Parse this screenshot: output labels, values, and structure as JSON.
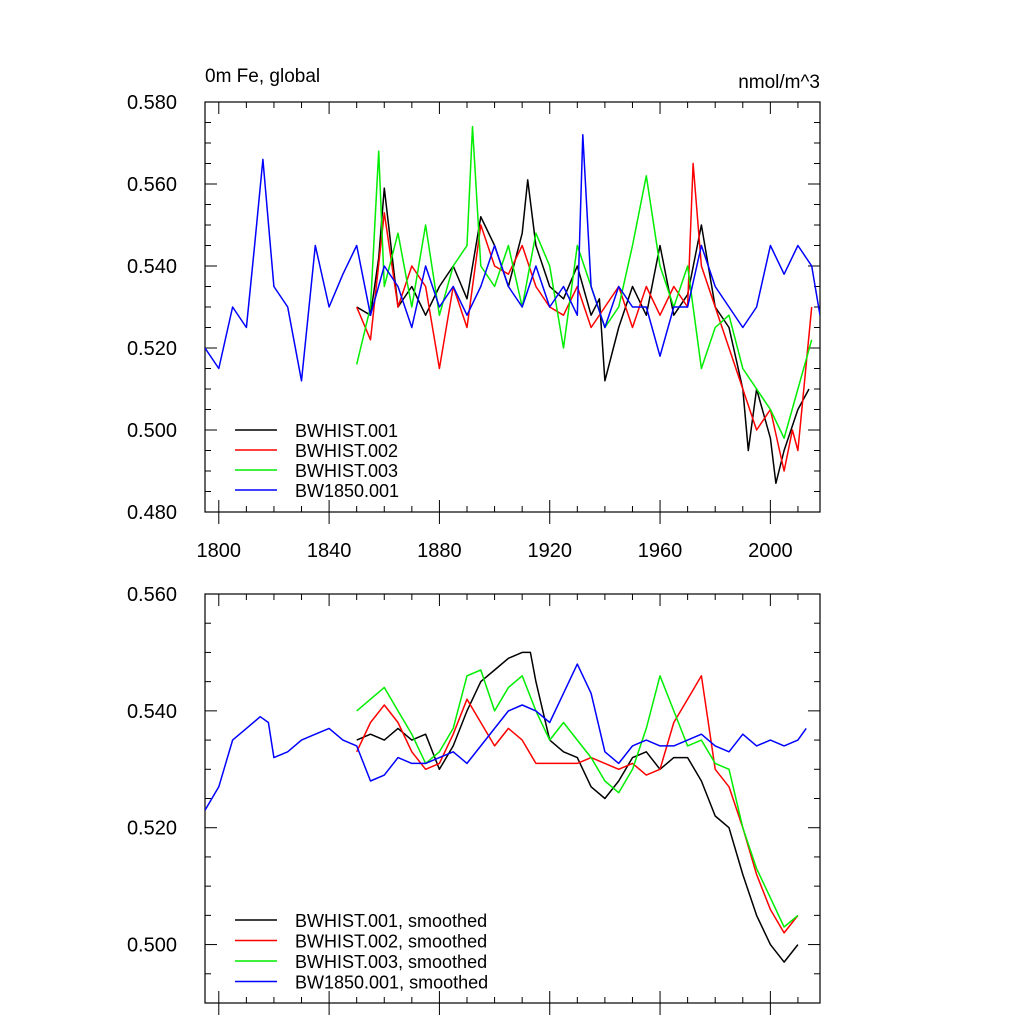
{
  "chart_data": [
    {
      "type": "line",
      "title_left": "0m Fe, global",
      "title_right": "nmol/m^3",
      "xlim": [
        1795,
        2018
      ],
      "ylim": [
        0.48,
        0.58
      ],
      "xticks": [
        1800,
        1840,
        1880,
        1920,
        1960,
        2000
      ],
      "xtick_labels": [
        "1800",
        "1840",
        "1880",
        "1920",
        "1960",
        "2000"
      ],
      "yticks": [
        0.48,
        0.5,
        0.52,
        0.54,
        0.56,
        0.58
      ],
      "ytick_labels": [
        "0.480",
        "0.500",
        "0.520",
        "0.540",
        "0.560",
        "0.580"
      ],
      "legend_position": "bottom-left",
      "grid": false,
      "series": [
        {
          "name": "BWHIST.001",
          "color": "#000000",
          "x": [
            1850,
            1855,
            1858,
            1860,
            1865,
            1870,
            1875,
            1880,
            1885,
            1890,
            1895,
            1900,
            1905,
            1910,
            1912,
            1915,
            1920,
            1925,
            1930,
            1935,
            1938,
            1940,
            1945,
            1950,
            1955,
            1960,
            1965,
            1970,
            1975,
            1980,
            1985,
            1990,
            1992,
            1995,
            2000,
            2002,
            2005,
            2010,
            2014
          ],
          "y": [
            0.53,
            0.528,
            0.542,
            0.559,
            0.53,
            0.535,
            0.528,
            0.535,
            0.54,
            0.532,
            0.552,
            0.545,
            0.535,
            0.548,
            0.561,
            0.545,
            0.535,
            0.532,
            0.54,
            0.528,
            0.532,
            0.512,
            0.525,
            0.535,
            0.528,
            0.545,
            0.528,
            0.533,
            0.55,
            0.53,
            0.525,
            0.51,
            0.495,
            0.51,
            0.498,
            0.487,
            0.495,
            0.505,
            0.51
          ]
        },
        {
          "name": "BWHIST.002",
          "color": "#ff0000",
          "x": [
            1850,
            1855,
            1860,
            1865,
            1870,
            1875,
            1880,
            1885,
            1890,
            1895,
            1900,
            1905,
            1910,
            1915,
            1920,
            1925,
            1930,
            1935,
            1940,
            1945,
            1950,
            1955,
            1960,
            1965,
            1970,
            1972,
            1975,
            1980,
            1985,
            1990,
            1995,
            2000,
            2005,
            2008,
            2010,
            2015
          ],
          "y": [
            0.53,
            0.522,
            0.553,
            0.53,
            0.54,
            0.535,
            0.515,
            0.535,
            0.525,
            0.55,
            0.54,
            0.538,
            0.545,
            0.535,
            0.53,
            0.528,
            0.535,
            0.525,
            0.53,
            0.535,
            0.525,
            0.535,
            0.528,
            0.535,
            0.53,
            0.565,
            0.54,
            0.53,
            0.52,
            0.51,
            0.5,
            0.505,
            0.49,
            0.5,
            0.495,
            0.53
          ]
        },
        {
          "name": "BWHIST.003",
          "color": "#00ee00",
          "x": [
            1850,
            1855,
            1858,
            1860,
            1865,
            1870,
            1875,
            1880,
            1885,
            1890,
            1892,
            1895,
            1900,
            1905,
            1910,
            1915,
            1920,
            1925,
            1930,
            1935,
            1940,
            1945,
            1950,
            1955,
            1960,
            1965,
            1970,
            1975,
            1980,
            1985,
            1990,
            1995,
            2000,
            2005,
            2010,
            2015
          ],
          "y": [
            0.516,
            0.53,
            0.568,
            0.535,
            0.548,
            0.53,
            0.55,
            0.528,
            0.54,
            0.545,
            0.574,
            0.54,
            0.535,
            0.545,
            0.53,
            0.548,
            0.54,
            0.52,
            0.545,
            0.535,
            0.525,
            0.53,
            0.545,
            0.562,
            0.54,
            0.53,
            0.54,
            0.515,
            0.525,
            0.528,
            0.515,
            0.51,
            0.505,
            0.498,
            0.51,
            0.522
          ]
        },
        {
          "name": "BW1850.001",
          "color": "#0000ff",
          "x": [
            1795,
            1800,
            1805,
            1810,
            1813,
            1816,
            1820,
            1825,
            1830,
            1835,
            1840,
            1845,
            1850,
            1855,
            1860,
            1865,
            1870,
            1875,
            1880,
            1885,
            1890,
            1895,
            1900,
            1905,
            1910,
            1915,
            1920,
            1925,
            1930,
            1932,
            1935,
            1940,
            1945,
            1950,
            1955,
            1960,
            1965,
            1970,
            1975,
            1980,
            1985,
            1990,
            1995,
            2000,
            2005,
            2010,
            2015,
            2018
          ],
          "y": [
            0.52,
            0.515,
            0.53,
            0.525,
            0.545,
            0.566,
            0.535,
            0.53,
            0.512,
            0.545,
            0.53,
            0.538,
            0.545,
            0.528,
            0.54,
            0.535,
            0.525,
            0.54,
            0.53,
            0.535,
            0.528,
            0.535,
            0.545,
            0.535,
            0.53,
            0.54,
            0.53,
            0.535,
            0.528,
            0.572,
            0.535,
            0.525,
            0.535,
            0.53,
            0.53,
            0.518,
            0.53,
            0.53,
            0.545,
            0.535,
            0.53,
            0.525,
            0.53,
            0.545,
            0.538,
            0.545,
            0.54,
            0.528
          ]
        }
      ]
    },
    {
      "type": "line",
      "xlim": [
        1795,
        2018
      ],
      "ylim": [
        0.49,
        0.56
      ],
      "xticks": [
        1800,
        1840,
        1880,
        1920,
        1960,
        2000
      ],
      "xtick_labels": [],
      "yticks": [
        0.5,
        0.52,
        0.54,
        0.56
      ],
      "ytick_labels": [
        "0.500",
        "0.520",
        "0.540",
        "0.560"
      ],
      "legend_position": "bottom-left",
      "grid": false,
      "series": [
        {
          "name": "BWHIST.001, smoothed",
          "color": "#000000",
          "x": [
            1850,
            1855,
            1860,
            1865,
            1870,
            1875,
            1880,
            1885,
            1890,
            1895,
            1900,
            1905,
            1910,
            1913,
            1915,
            1920,
            1925,
            1930,
            1935,
            1940,
            1945,
            1950,
            1955,
            1960,
            1965,
            1970,
            1975,
            1980,
            1985,
            1990,
            1995,
            2000,
            2005,
            2010
          ],
          "y": [
            0.535,
            0.536,
            0.535,
            0.537,
            0.535,
            0.536,
            0.53,
            0.534,
            0.54,
            0.545,
            0.547,
            0.549,
            0.55,
            0.55,
            0.545,
            0.535,
            0.533,
            0.532,
            0.527,
            0.525,
            0.528,
            0.532,
            0.533,
            0.53,
            0.532,
            0.532,
            0.528,
            0.522,
            0.52,
            0.512,
            0.505,
            0.5,
            0.497,
            0.5
          ]
        },
        {
          "name": "BWHIST.002, smoothed",
          "color": "#ff0000",
          "x": [
            1850,
            1855,
            1860,
            1865,
            1870,
            1875,
            1880,
            1885,
            1890,
            1895,
            1900,
            1905,
            1910,
            1915,
            1920,
            1925,
            1930,
            1935,
            1940,
            1945,
            1950,
            1955,
            1960,
            1965,
            1970,
            1975,
            1980,
            1985,
            1990,
            1995,
            2000,
            2005,
            2010
          ],
          "y": [
            0.533,
            0.538,
            0.541,
            0.538,
            0.533,
            0.53,
            0.531,
            0.536,
            0.542,
            0.538,
            0.534,
            0.537,
            0.535,
            0.531,
            0.531,
            0.531,
            0.531,
            0.532,
            0.531,
            0.53,
            0.531,
            0.529,
            0.53,
            0.538,
            0.542,
            0.546,
            0.53,
            0.527,
            0.52,
            0.512,
            0.506,
            0.502,
            0.505
          ]
        },
        {
          "name": "BWHIST.003, smoothed",
          "color": "#00ee00",
          "x": [
            1850,
            1855,
            1860,
            1865,
            1870,
            1875,
            1880,
            1885,
            1890,
            1895,
            1900,
            1905,
            1910,
            1915,
            1920,
            1925,
            1930,
            1935,
            1940,
            1945,
            1950,
            1955,
            1960,
            1965,
            1970,
            1975,
            1980,
            1985,
            1990,
            1995,
            2000,
            2005,
            2010
          ],
          "y": [
            0.54,
            0.542,
            0.544,
            0.54,
            0.536,
            0.531,
            0.533,
            0.537,
            0.546,
            0.547,
            0.54,
            0.544,
            0.546,
            0.54,
            0.535,
            0.538,
            0.535,
            0.532,
            0.528,
            0.526,
            0.53,
            0.537,
            0.546,
            0.54,
            0.534,
            0.535,
            0.531,
            0.53,
            0.52,
            0.513,
            0.508,
            0.503,
            0.505
          ]
        },
        {
          "name": "BW1850.001, smoothed",
          "color": "#0000ff",
          "x": [
            1795,
            1800,
            1805,
            1810,
            1815,
            1818,
            1820,
            1825,
            1830,
            1835,
            1840,
            1845,
            1850,
            1855,
            1860,
            1865,
            1870,
            1875,
            1880,
            1885,
            1890,
            1895,
            1900,
            1905,
            1910,
            1915,
            1920,
            1925,
            1930,
            1935,
            1940,
            1945,
            1950,
            1955,
            1960,
            1965,
            1970,
            1975,
            1980,
            1985,
            1990,
            1995,
            2000,
            2005,
            2010,
            2013
          ],
          "y": [
            0.523,
            0.527,
            0.535,
            0.537,
            0.539,
            0.538,
            0.532,
            0.533,
            0.535,
            0.536,
            0.537,
            0.535,
            0.534,
            0.528,
            0.529,
            0.532,
            0.531,
            0.531,
            0.532,
            0.533,
            0.531,
            0.534,
            0.537,
            0.54,
            0.541,
            0.54,
            0.538,
            0.543,
            0.548,
            0.543,
            0.533,
            0.531,
            0.534,
            0.535,
            0.534,
            0.534,
            0.535,
            0.536,
            0.534,
            0.533,
            0.536,
            0.534,
            0.535,
            0.534,
            0.535,
            0.537
          ]
        }
      ]
    }
  ]
}
